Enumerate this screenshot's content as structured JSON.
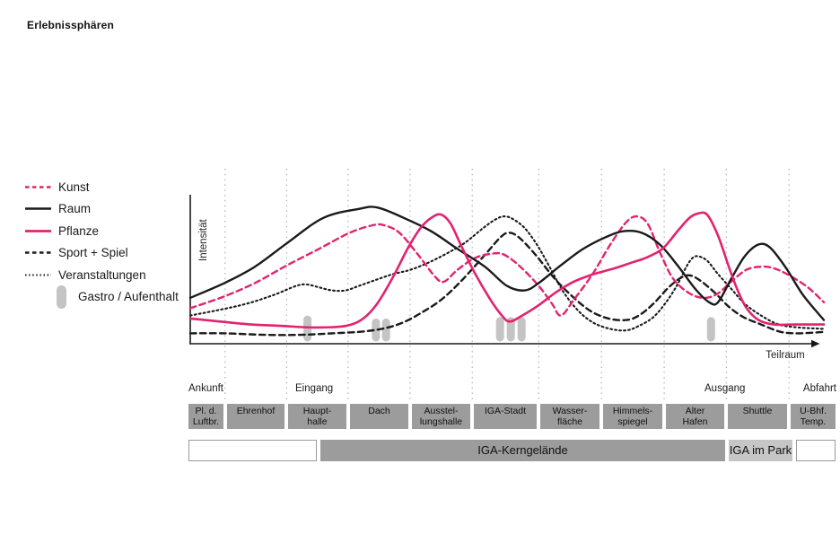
{
  "title": "Erlebnissphären",
  "colors": {
    "accent_pink": "#e2236f",
    "line_black": "#1a1a1a",
    "grid": "#a6a6a6",
    "zone_box": "#9c9c9c",
    "kern_box": "#9c9c9c",
    "park_box": "#c6c6c6",
    "gastro_bar": "#c4c4c4"
  },
  "legend": {
    "items": [
      {
        "label": "Kunst",
        "swatch": "pink-dashed"
      },
      {
        "label": "Raum",
        "swatch": "black-solid"
      },
      {
        "label": "Pflanze",
        "swatch": "pink-solid"
      },
      {
        "label": "Sport + Spiel",
        "swatch": "black-dashed"
      },
      {
        "label": "Veranstaltungen",
        "swatch": "black-dotted"
      },
      {
        "label": "Gastro / Aufenthalt",
        "swatch": "gray-bar"
      }
    ]
  },
  "stages": [
    {
      "label": "Ankunft"
    },
    {
      "label": "Eingang"
    },
    {
      "label": "Ausgang"
    },
    {
      "label": "Abfahrt"
    }
  ],
  "zones": [
    {
      "lines": [
        "Pl. d.",
        "Luftbr."
      ]
    },
    {
      "lines": [
        "Ehrenhof"
      ]
    },
    {
      "lines": [
        "Haupt-",
        "halle"
      ]
    },
    {
      "lines": [
        "Dach"
      ]
    },
    {
      "lines": [
        "Ausstel-",
        "lungshalle"
      ]
    },
    {
      "lines": [
        "IGA-Stadt"
      ]
    },
    {
      "lines": [
        "Wasser-",
        "fläche"
      ]
    },
    {
      "lines": [
        "Himmels-",
        "spiegel"
      ]
    },
    {
      "lines": [
        "Alter",
        "Hafen"
      ]
    },
    {
      "lines": [
        "Shuttle"
      ]
    },
    {
      "lines": [
        "U-Bhf.",
        "Temp."
      ]
    }
  ],
  "bands": [
    {
      "label": "",
      "style": "white"
    },
    {
      "label": "IGA-Kerngelände",
      "style": "dark-gray"
    },
    {
      "label": "IGA im Park",
      "style": "light-gray"
    },
    {
      "label": "",
      "style": "white"
    }
  ],
  "chart_data": {
    "type": "line",
    "title": "Erlebnissphären",
    "xlabel": "Teilraum",
    "ylabel": "Intensität",
    "x_unit": "percent of Teilraum axis (0 = y-axis, 100 = arrow end)",
    "y_unit": "relative intensity 0-100 (qualitative axis, no tick labels)",
    "ylim": [
      0,
      100
    ],
    "grid": "vertical dotted lines at zone boundaries",
    "legend_position": "left",
    "categories": [
      "Pl. d. Luftbr.",
      "Ehrenhof",
      "Haupthalle",
      "Dach",
      "Ausstellungshalle",
      "IGA-Stadt",
      "Wasserfläche",
      "Himmelsspiegel",
      "Alter Hafen",
      "Shuttle",
      "U-Bhf. Temp."
    ],
    "zone_boundaries_x": [
      5.5,
      15.2,
      24.9,
      34.7,
      44.5,
      55,
      64.9,
      74.8,
      84.6,
      94.5
    ],
    "series": [
      {
        "id": "veranstaltungen",
        "name": "Veranstaltungen",
        "style": {
          "color": "#1a1a1a",
          "dash": "1.8 3.2",
          "width": 2.1
        },
        "points": [
          [
            0,
            19
          ],
          [
            4.7,
            23
          ],
          [
            8.9,
            27
          ],
          [
            13.2,
            33
          ],
          [
            16.7,
            39
          ],
          [
            18.4,
            40
          ],
          [
            20.4,
            38
          ],
          [
            22.4,
            36
          ],
          [
            24.5,
            36
          ],
          [
            26.6,
            39
          ],
          [
            29.2,
            43
          ],
          [
            32,
            47
          ],
          [
            34.8,
            50
          ],
          [
            37.7,
            55
          ],
          [
            40.5,
            61
          ],
          [
            43.3,
            68
          ],
          [
            46.2,
            78
          ],
          [
            48.2,
            84
          ],
          [
            49.6,
            86
          ],
          [
            51,
            84
          ],
          [
            52.8,
            78
          ],
          [
            54.7,
            67
          ],
          [
            56.7,
            52
          ],
          [
            58.9,
            35
          ],
          [
            61.3,
            22
          ],
          [
            63.7,
            14
          ],
          [
            66.3,
            10
          ],
          [
            68.8,
            9
          ],
          [
            70.8,
            12
          ],
          [
            73.1,
            18
          ],
          [
            75.1,
            28
          ],
          [
            76.9,
            40
          ],
          [
            78.3,
            52
          ],
          [
            79.3,
            58
          ],
          [
            80.2,
            59
          ],
          [
            81.6,
            56
          ],
          [
            83.3,
            47
          ],
          [
            85.4,
            37
          ],
          [
            87.5,
            27
          ],
          [
            90.1,
            19
          ],
          [
            92.9,
            13
          ],
          [
            96,
            11
          ],
          [
            100,
            10
          ]
        ]
      },
      {
        "id": "sport-spiel",
        "name": "Sport + Spiel",
        "style": {
          "color": "#1a1a1a",
          "dash": "6.5 4.5",
          "width": 2.4
        },
        "points": [
          [
            0,
            7
          ],
          [
            5.4,
            7
          ],
          [
            11.8,
            6
          ],
          [
            17.4,
            6
          ],
          [
            22.4,
            7
          ],
          [
            26.6,
            8
          ],
          [
            30.2,
            10
          ],
          [
            33.4,
            14
          ],
          [
            36.5,
            21
          ],
          [
            39.7,
            30
          ],
          [
            42.9,
            43
          ],
          [
            46.5,
            60
          ],
          [
            49,
            72
          ],
          [
            50.4,
            75
          ],
          [
            52.1,
            71
          ],
          [
            54.7,
            59
          ],
          [
            57.5,
            44
          ],
          [
            60.3,
            32
          ],
          [
            63.2,
            22
          ],
          [
            66,
            17
          ],
          [
            68.8,
            16
          ],
          [
            70.8,
            19
          ],
          [
            73.1,
            27
          ],
          [
            75.5,
            38
          ],
          [
            77.6,
            45
          ],
          [
            79,
            46
          ],
          [
            80.7,
            42
          ],
          [
            82.9,
            34
          ],
          [
            85,
            25
          ],
          [
            87.3,
            18
          ],
          [
            90.1,
            13
          ],
          [
            93.2,
            8
          ],
          [
            96,
            7
          ],
          [
            100,
            8
          ]
        ]
      },
      {
        "id": "kunst",
        "name": "Kunst",
        "style": {
          "color": "#e2236f",
          "dash": "6.5 4.5",
          "width": 2.4
        },
        "points": [
          [
            0,
            24
          ],
          [
            5.4,
            32
          ],
          [
            10.2,
            41
          ],
          [
            15.3,
            53
          ],
          [
            20.3,
            64
          ],
          [
            25.2,
            75
          ],
          [
            28.8,
            80
          ],
          [
            30.6,
            80
          ],
          [
            33,
            75
          ],
          [
            35.8,
            61
          ],
          [
            38.7,
            45
          ],
          [
            40.1,
            42
          ],
          [
            42.2,
            50
          ],
          [
            45,
            58
          ],
          [
            47.9,
            61
          ],
          [
            49.6,
            60
          ],
          [
            52.1,
            52
          ],
          [
            55,
            39
          ],
          [
            57.1,
            27
          ],
          [
            58.5,
            19
          ],
          [
            60.6,
            30
          ],
          [
            63.5,
            47
          ],
          [
            66.3,
            67
          ],
          [
            68.8,
            82
          ],
          [
            70.5,
            86
          ],
          [
            72.2,
            81
          ],
          [
            74.1,
            62
          ],
          [
            76.2,
            44
          ],
          [
            78.8,
            34
          ],
          [
            81.2,
            31
          ],
          [
            83.3,
            34
          ],
          [
            85.4,
            42
          ],
          [
            87.8,
            50
          ],
          [
            90.1,
            52
          ],
          [
            92.1,
            51
          ],
          [
            94.6,
            46
          ],
          [
            97.5,
            38
          ],
          [
            100,
            28
          ]
        ]
      },
      {
        "id": "raum",
        "name": "Raum",
        "style": {
          "color": "#1a1a1a",
          "dash": null,
          "width": 2.4
        },
        "points": [
          [
            0,
            31
          ],
          [
            5.4,
            41
          ],
          [
            10.2,
            52
          ],
          [
            15.3,
            68
          ],
          [
            21,
            85
          ],
          [
            26.6,
            91
          ],
          [
            29.5,
            92
          ],
          [
            33.7,
            85
          ],
          [
            38,
            76
          ],
          [
            42.2,
            64
          ],
          [
            46.5,
            52
          ],
          [
            50,
            39
          ],
          [
            52.8,
            36
          ],
          [
            55,
            41
          ],
          [
            58.5,
            53
          ],
          [
            62,
            64
          ],
          [
            65.6,
            72
          ],
          [
            68.4,
            76
          ],
          [
            71.2,
            75
          ],
          [
            74.1,
            67
          ],
          [
            76.9,
            53
          ],
          [
            79.7,
            37
          ],
          [
            81.9,
            28
          ],
          [
            83.3,
            28
          ],
          [
            85.4,
            44
          ],
          [
            87.5,
            59
          ],
          [
            89.7,
            67
          ],
          [
            91.5,
            65
          ],
          [
            93.9,
            52
          ],
          [
            96.7,
            33
          ],
          [
            100,
            16
          ]
        ]
      },
      {
        "id": "pflanze",
        "name": "Pflanze",
        "style": {
          "color": "#e2236f",
          "dash": null,
          "width": 2.6
        },
        "points": [
          [
            0,
            17
          ],
          [
            4.7,
            15
          ],
          [
            9.6,
            13
          ],
          [
            14.6,
            12
          ],
          [
            19.5,
            11
          ],
          [
            24.5,
            12
          ],
          [
            27.3,
            17
          ],
          [
            29.5,
            27
          ],
          [
            32,
            45
          ],
          [
            34.4,
            65
          ],
          [
            36.5,
            79
          ],
          [
            38.4,
            86
          ],
          [
            39.7,
            87
          ],
          [
            41.1,
            81
          ],
          [
            42.9,
            65
          ],
          [
            45,
            47
          ],
          [
            47.2,
            31
          ],
          [
            49,
            20
          ],
          [
            50.4,
            15
          ],
          [
            52.4,
            19
          ],
          [
            55,
            26
          ],
          [
            57.8,
            35
          ],
          [
            60.6,
            42
          ],
          [
            63.7,
            47
          ],
          [
            67,
            51
          ],
          [
            69.8,
            55
          ],
          [
            71.9,
            58
          ],
          [
            74.5,
            64
          ],
          [
            76.9,
            76
          ],
          [
            78.8,
            85
          ],
          [
            80.2,
            88
          ],
          [
            81.6,
            87
          ],
          [
            83.3,
            73
          ],
          [
            85,
            52
          ],
          [
            86.4,
            36
          ],
          [
            87.8,
            24
          ],
          [
            89.7,
            16
          ],
          [
            92.1,
            13
          ],
          [
            95.3,
            13
          ],
          [
            100,
            13
          ]
        ]
      }
    ],
    "gastro_markers": [
      {
        "x": 18.5,
        "intensity": 19
      },
      {
        "x": 29.3,
        "intensity": 17
      },
      {
        "x": 30.9,
        "intensity": 17
      },
      {
        "x": 48.9,
        "intensity": 18
      },
      {
        "x": 50.6,
        "intensity": 18
      },
      {
        "x": 52.3,
        "intensity": 18
      },
      {
        "x": 82.2,
        "intensity": 18
      }
    ]
  }
}
